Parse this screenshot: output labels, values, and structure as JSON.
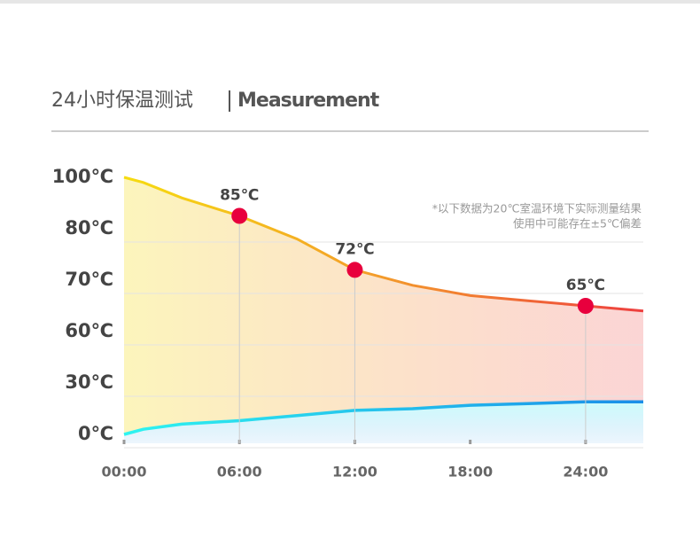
{
  "chart_data": {
    "type": "line",
    "title": "24小时保温测试",
    "subtitle": "Measurement",
    "annotations": [
      "*以下数据为20℃室温环境下实际测量结果",
      "使用中可能存在±5℃偏差"
    ],
    "xlim": [
      0,
      27
    ],
    "xticks": [
      {
        "value": 0,
        "label": "00:00"
      },
      {
        "value": 6,
        "label": "06:00"
      },
      {
        "value": 12,
        "label": "12:00"
      },
      {
        "value": 18,
        "label": "18:00"
      },
      {
        "value": 24,
        "label": "24:00"
      }
    ],
    "ylim": [
      0,
      100
    ],
    "yticks": [
      {
        "value": 100,
        "label": "100℃"
      },
      {
        "value": 80,
        "label": "80℃"
      },
      {
        "value": 70,
        "label": "70℃"
      },
      {
        "value": 60,
        "label": "60℃"
      },
      {
        "value": 30,
        "label": "30℃"
      },
      {
        "value": 0,
        "label": "0℃"
      }
    ],
    "grid": true,
    "series": [
      {
        "x": [
          6,
          12,
          24
        ],
        "values": [
          85,
          72,
          65
        ],
        "value_labels": [
          "85℃",
          "72℃",
          "65℃"
        ],
        "color": "#e8003d"
      },
      {
        "x": [
          0,
          1,
          3,
          6,
          9,
          12,
          15,
          18,
          21,
          24,
          27
        ],
        "values": [
          100,
          98,
          92,
          85,
          78,
          72,
          69,
          67,
          66,
          65,
          64
        ],
        "colors": [
          "#f6dc10",
          "#ee3f3f"
        ]
      },
      {
        "x": [
          0,
          1,
          3,
          6,
          9,
          12,
          15,
          18,
          21,
          24,
          27
        ],
        "values": [
          0,
          3,
          6,
          8,
          11,
          14,
          15,
          17,
          18,
          19,
          19
        ],
        "colors": [
          "#2ef4f0",
          "#1a8ee8"
        ]
      }
    ]
  }
}
